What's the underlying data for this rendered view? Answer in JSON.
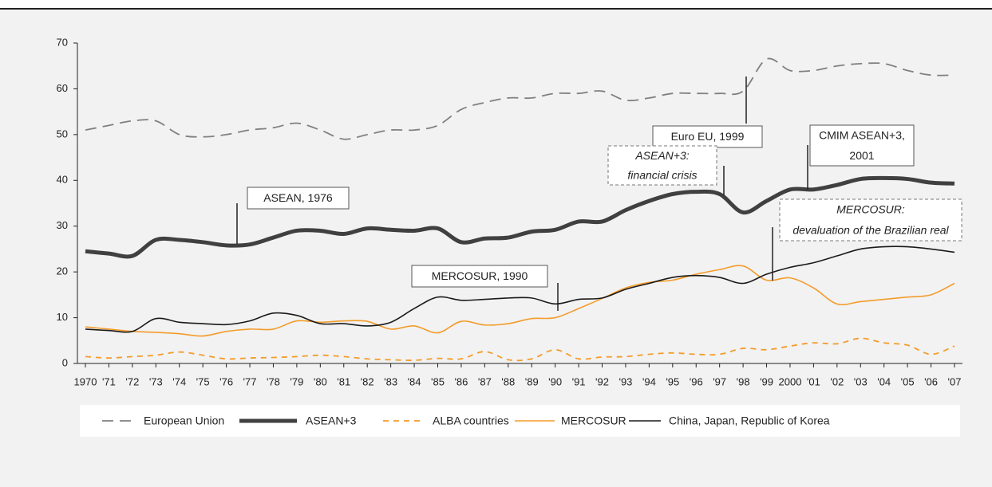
{
  "chart_data": {
    "type": "line",
    "categories": [
      "1970",
      "'71",
      "'72",
      "'73",
      "'74",
      "'75",
      "'76",
      "'77",
      "'78",
      "'79",
      "'80",
      "'81",
      "'82",
      "'83",
      "'84",
      "'85",
      "'86",
      "'87",
      "'88",
      "'89",
      "'90",
      "'91",
      "'92",
      "'93",
      "'94",
      "'95",
      "'96",
      "'97",
      "'98",
      "'99",
      "2000",
      "'01",
      "'02",
      "'03",
      "'04",
      "'05",
      "'06",
      "'07"
    ],
    "ylim": [
      0,
      70
    ],
    "yticks": [
      0,
      10,
      20,
      30,
      40,
      50,
      60,
      70
    ],
    "series": [
      {
        "name": "European Union",
        "color": "#808080",
        "dashed": true,
        "thick": false,
        "values": [
          51,
          52,
          53,
          53,
          50,
          49.5,
          50,
          51,
          51.5,
          52.5,
          51,
          49,
          50,
          51,
          51,
          52,
          55.5,
          57,
          58,
          58,
          59,
          59,
          59.5,
          57.5,
          58,
          59,
          59,
          59,
          59.5,
          66.5,
          64,
          64,
          65,
          65.5,
          65.5,
          64,
          63,
          63
        ]
      },
      {
        "name": "ASEAN+3",
        "color": "#404040",
        "dashed": false,
        "thick": true,
        "values": [
          24.5,
          24,
          23.5,
          27,
          27,
          26.5,
          25.8,
          26,
          27.5,
          29,
          29,
          28.3,
          29.5,
          29.2,
          29,
          29.5,
          26.5,
          27.3,
          27.5,
          28.8,
          29.2,
          31,
          31,
          33.5,
          35.5,
          37,
          37.5,
          37,
          33,
          35.5,
          38,
          38,
          39,
          40.3,
          40.5,
          40.3,
          39.5,
          39.3
        ]
      },
      {
        "name": "ALBA countries",
        "color": "#f39c2b",
        "dashed": true,
        "thick": false,
        "values": [
          1.5,
          1.2,
          1.5,
          1.8,
          2.5,
          1.8,
          1,
          1.2,
          1.3,
          1.5,
          1.8,
          1.5,
          1,
          0.8,
          0.7,
          1.1,
          1,
          2.6,
          0.8,
          1,
          3,
          1,
          1.4,
          1.5,
          2,
          2.3,
          2,
          2,
          3.3,
          3,
          3.8,
          4.5,
          4.3,
          5.5,
          4.5,
          4,
          2,
          3.8
        ]
      },
      {
        "name": "MERCOSUR",
        "color": "#f39c2b",
        "dashed": false,
        "thick": false,
        "values": [
          8,
          7.5,
          7,
          6.8,
          6.5,
          6,
          7,
          7.5,
          7.5,
          9.3,
          9,
          9.3,
          9.2,
          7.5,
          8.2,
          6.7,
          9.2,
          8.4,
          8.7,
          9.8,
          10,
          12,
          14.2,
          16.5,
          17.7,
          18.2,
          19.5,
          20.5,
          21.3,
          18.2,
          18.7,
          16.5,
          13,
          13.5,
          14,
          14.5,
          15,
          17.5
        ]
      },
      {
        "name": "China, Japan, Republic of Korea",
        "color": "#1a1a1a",
        "dashed": false,
        "thick": false,
        "values": [
          7.5,
          7.2,
          7,
          9.8,
          9,
          8.7,
          8.5,
          9.3,
          11,
          10.5,
          8.7,
          8.7,
          8.2,
          9,
          12,
          14.5,
          13.8,
          14,
          14.3,
          14.3,
          13,
          14,
          14.3,
          16.2,
          17.5,
          18.8,
          19.2,
          18.8,
          17.5,
          19.5,
          21,
          22,
          23.5,
          25,
          25.5,
          25.5,
          25,
          24.3
        ]
      }
    ],
    "annotations": [
      {
        "lines": [
          "ASEAN, 1976"
        ],
        "dashed": false
      },
      {
        "lines": [
          "MERCOSUR, 1990"
        ],
        "dashed": false
      },
      {
        "lines": [
          "Euro EU, 1999"
        ],
        "dashed": false
      },
      {
        "lines": [
          "CMIM ASEAN+3,",
          "2001"
        ],
        "dashed": false
      },
      {
        "lines": [
          "ASEAN+3:",
          "financial crisis"
        ],
        "dashed": true
      },
      {
        "lines": [
          "MERCOSUR:",
          "devaluation of the Brazilian real"
        ],
        "dashed": true
      }
    ]
  }
}
